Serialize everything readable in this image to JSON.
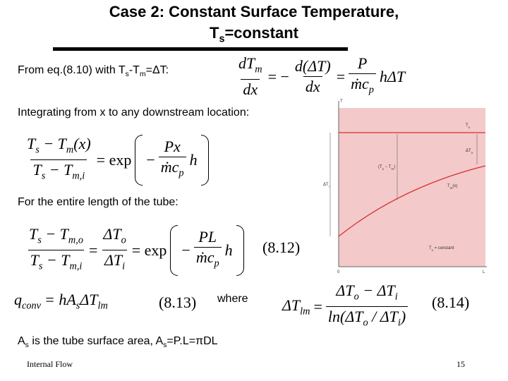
{
  "title": {
    "line1": "Case 2: Constant Surface Temperature,",
    "line2": "T_{s}=constant"
  },
  "text1": "From eq.(8.10) with T_{s}-T_{m}=ΔT:",
  "eq_a": {
    "lhs_num": "dT_{m}",
    "lhs_den": "dx",
    "eq1": "= −",
    "mid_num": "d(ΔT)",
    "mid_den": "dx",
    "eq2": "=",
    "rhs_num": "P",
    "rhs_den": "ṁc_{p}",
    "tail": "hΔT"
  },
  "text2": "Integrating from x to any downstream location:",
  "eq_b": {
    "num": "T_{s} − T_{m}(x)",
    "den": "T_{s} − T_{m,i}",
    "eq": "= exp",
    "minus": "−",
    "inner_num": "Px",
    "inner_den": "ṁc_{p}",
    "tail": "h"
  },
  "text3": "For the entire length of the tube:",
  "eq_c": {
    "num1": "T_{s} − T_{m,o}",
    "den1": "T_{s} − T_{m,i}",
    "eq1": "=",
    "num2": "ΔT_{o}",
    "den2": "ΔT_{i}",
    "eq2": "= exp",
    "minus": "−",
    "inner_num": "PL",
    "inner_den": "ṁc_{p}",
    "tail": "h",
    "number": "(8.12)"
  },
  "eq_d": {
    "lhs": "q_{conv}",
    "rhs": "= hA_{s}ΔT_{lm}",
    "number": "(8.13)"
  },
  "where": "where",
  "eq_e": {
    "lhs": "ΔT_{lm}",
    "eq": "=",
    "num": "ΔT_{o} − ΔT_{i}",
    "den": "ln(ΔT_{o} / ΔT_{i})",
    "number": "(8.14)"
  },
  "text4": "A_{s} is the tube surface area, A_{s}=P.L=πDL",
  "footer": {
    "left": "Internal Flow",
    "page": "15"
  },
  "figure": {
    "y_axis": "T",
    "ts": "T_{s}",
    "dto": "ΔT_{o}",
    "diff": "(T_{s} − T_{m})",
    "dti": "ΔT_{i}",
    "tm": "T_{m}(x)",
    "const": "T_{s} = constant",
    "x0": "0",
    "xL": "L"
  }
}
